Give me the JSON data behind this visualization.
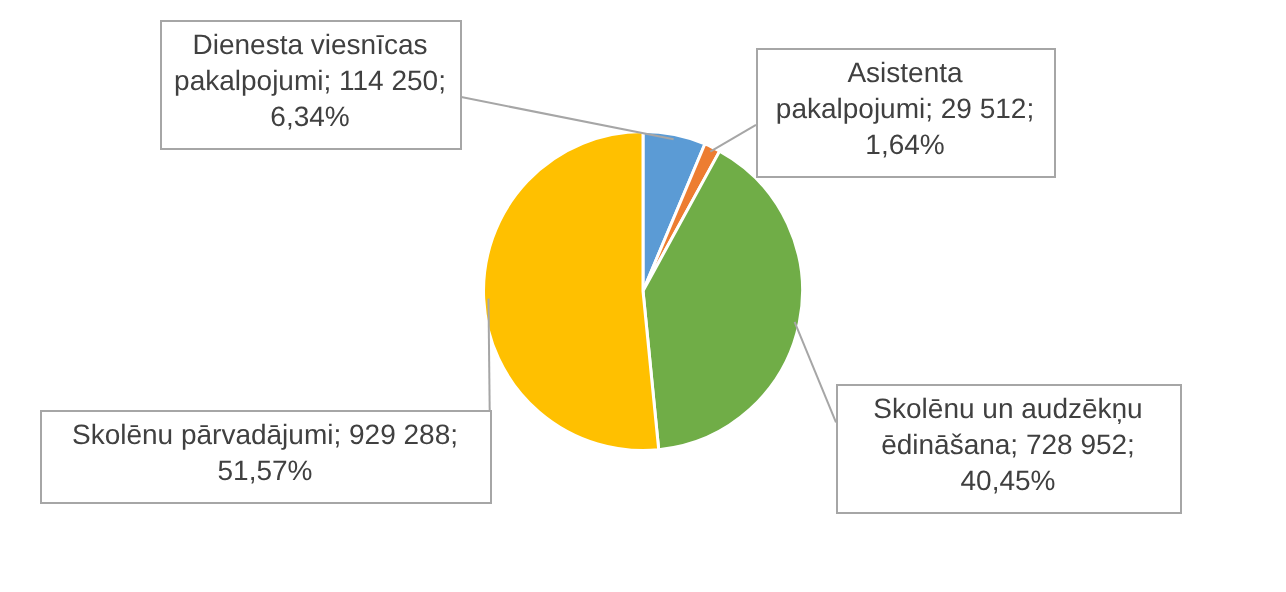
{
  "chart_data": {
    "type": "pie",
    "categories": [
      "Dienesta viesnīcas pakalpojumi",
      "Asistenta pakalpojumi",
      "Skolēnu un audzēkņu ēdināšana",
      "Skolēnu pārvadājumi"
    ],
    "values": [
      114250,
      29512,
      728952,
      929288
    ],
    "value_labels": [
      "114 250; 6,34%",
      "29 512; 1,64%",
      "728 952; 40,45%",
      "929 288; 51,57%"
    ],
    "colors": [
      "#5b9bd5",
      "#ed7d31",
      "#70ad47",
      "#ffc000"
    ],
    "legend": false
  }
}
